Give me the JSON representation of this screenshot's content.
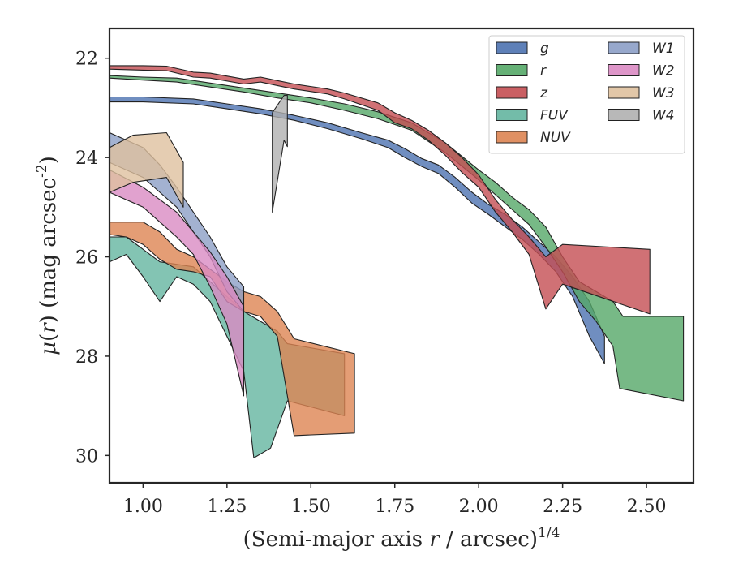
{
  "chart_data": {
    "type": "area",
    "title": "",
    "xlabel": "(Semi-major axis r / arcsec)^{1/4}",
    "ylabel": "μ(r) (mag arcsec^{-2})",
    "xlim": [
      0.9,
      2.64
    ],
    "ylim": [
      30.55,
      21.4
    ],
    "y_inverted": true,
    "grid": false,
    "legend_position": "top-right",
    "legend_columns": 2,
    "x_ticks": [
      1.0,
      1.25,
      1.5,
      1.75,
      2.0,
      2.25,
      2.5
    ],
    "x_tick_labels": [
      "1.00",
      "1.25",
      "1.50",
      "1.75",
      "2.00",
      "2.25",
      "2.50"
    ],
    "y_ticks": [
      22,
      24,
      26,
      28,
      30
    ],
    "y_tick_labels": [
      "22",
      "24",
      "26",
      "28",
      "30"
    ],
    "series": [
      {
        "name": "g",
        "color": "#4c72b0",
        "upper": [
          [
            0.9,
            22.78
          ],
          [
            1.0,
            22.78
          ],
          [
            1.15,
            22.82
          ],
          [
            1.25,
            22.92
          ],
          [
            1.35,
            23.02
          ],
          [
            1.45,
            23.15
          ],
          [
            1.55,
            23.3
          ],
          [
            1.65,
            23.5
          ],
          [
            1.73,
            23.65
          ],
          [
            1.78,
            23.82
          ],
          [
            1.83,
            24.02
          ],
          [
            1.88,
            24.15
          ],
          [
            1.93,
            24.4
          ],
          [
            1.98,
            24.7
          ],
          [
            2.03,
            24.95
          ],
          [
            2.08,
            25.15
          ],
          [
            2.13,
            25.4
          ],
          [
            2.18,
            25.7
          ],
          [
            2.23,
            26.0
          ],
          [
            2.28,
            26.4
          ],
          [
            2.33,
            26.9
          ],
          [
            2.375,
            27.6
          ]
        ],
        "lower": [
          [
            0.9,
            22.88
          ],
          [
            1.0,
            22.88
          ],
          [
            1.15,
            22.92
          ],
          [
            1.25,
            23.02
          ],
          [
            1.35,
            23.12
          ],
          [
            1.45,
            23.25
          ],
          [
            1.55,
            23.42
          ],
          [
            1.65,
            23.62
          ],
          [
            1.73,
            23.8
          ],
          [
            1.78,
            24.0
          ],
          [
            1.83,
            24.18
          ],
          [
            1.88,
            24.32
          ],
          [
            1.93,
            24.6
          ],
          [
            1.98,
            24.92
          ],
          [
            2.03,
            25.15
          ],
          [
            2.08,
            25.4
          ],
          [
            2.13,
            25.65
          ],
          [
            2.18,
            25.95
          ],
          [
            2.23,
            26.3
          ],
          [
            2.28,
            26.8
          ],
          [
            2.33,
            27.6
          ],
          [
            2.375,
            28.15
          ]
        ]
      },
      {
        "name": "r",
        "color": "#55a868",
        "upper": [
          [
            0.9,
            22.35
          ],
          [
            1.0,
            22.38
          ],
          [
            1.1,
            22.4
          ],
          [
            1.2,
            22.5
          ],
          [
            1.3,
            22.6
          ],
          [
            1.4,
            22.7
          ],
          [
            1.5,
            22.8
          ],
          [
            1.6,
            22.92
          ],
          [
            1.7,
            23.08
          ],
          [
            1.8,
            23.3
          ],
          [
            1.9,
            23.7
          ],
          [
            2.0,
            24.25
          ],
          [
            2.05,
            24.5
          ],
          [
            2.1,
            24.8
          ],
          [
            2.15,
            25.05
          ],
          [
            2.2,
            25.4
          ],
          [
            2.25,
            26.0
          ],
          [
            2.3,
            26.5
          ],
          [
            2.35,
            26.7
          ],
          [
            2.4,
            26.9
          ],
          [
            2.43,
            27.2
          ],
          [
            2.61,
            27.2
          ]
        ],
        "lower": [
          [
            0.9,
            22.4
          ],
          [
            1.0,
            22.44
          ],
          [
            1.1,
            22.48
          ],
          [
            1.2,
            22.58
          ],
          [
            1.3,
            22.68
          ],
          [
            1.4,
            22.8
          ],
          [
            1.5,
            22.9
          ],
          [
            1.6,
            23.05
          ],
          [
            1.7,
            23.22
          ],
          [
            1.8,
            23.45
          ],
          [
            1.9,
            23.9
          ],
          [
            2.0,
            24.45
          ],
          [
            2.05,
            24.75
          ],
          [
            2.1,
            25.05
          ],
          [
            2.15,
            25.35
          ],
          [
            2.2,
            25.8
          ],
          [
            2.25,
            26.3
          ],
          [
            2.3,
            26.9
          ],
          [
            2.35,
            27.3
          ],
          [
            2.4,
            27.8
          ],
          [
            2.42,
            28.65
          ],
          [
            2.61,
            28.9
          ]
        ]
      },
      {
        "name": "z",
        "color": "#c44e52",
        "upper": [
          [
            0.9,
            22.15
          ],
          [
            1.0,
            22.15
          ],
          [
            1.07,
            22.16
          ],
          [
            1.15,
            22.28
          ],
          [
            1.2,
            22.3
          ],
          [
            1.3,
            22.42
          ],
          [
            1.35,
            22.38
          ],
          [
            1.4,
            22.45
          ],
          [
            1.45,
            22.52
          ],
          [
            1.55,
            22.62
          ],
          [
            1.6,
            22.7
          ],
          [
            1.7,
            22.9
          ],
          [
            1.75,
            23.1
          ],
          [
            1.8,
            23.25
          ],
          [
            1.85,
            23.45
          ],
          [
            1.9,
            23.7
          ],
          [
            1.95,
            24.0
          ],
          [
            2.0,
            24.35
          ],
          [
            2.05,
            24.85
          ],
          [
            2.1,
            25.25
          ],
          [
            2.15,
            25.6
          ],
          [
            2.2,
            26.0
          ],
          [
            2.25,
            25.75
          ],
          [
            2.51,
            25.85
          ]
        ],
        "lower": [
          [
            0.9,
            22.22
          ],
          [
            1.0,
            22.24
          ],
          [
            1.07,
            22.25
          ],
          [
            1.15,
            22.38
          ],
          [
            1.2,
            22.4
          ],
          [
            1.3,
            22.52
          ],
          [
            1.35,
            22.48
          ],
          [
            1.4,
            22.55
          ],
          [
            1.45,
            22.62
          ],
          [
            1.55,
            22.72
          ],
          [
            1.6,
            22.82
          ],
          [
            1.7,
            23.05
          ],
          [
            1.75,
            23.3
          ],
          [
            1.8,
            23.42
          ],
          [
            1.85,
            23.65
          ],
          [
            1.9,
            23.95
          ],
          [
            1.95,
            24.3
          ],
          [
            2.0,
            24.6
          ],
          [
            2.05,
            25.1
          ],
          [
            2.1,
            25.5
          ],
          [
            2.15,
            25.95
          ],
          [
            2.2,
            27.05
          ],
          [
            2.25,
            26.55
          ],
          [
            2.51,
            27.15
          ]
        ]
      },
      {
        "name": "FUV",
        "color": "#64b5a0",
        "upper": [
          [
            0.9,
            25.6
          ],
          [
            0.95,
            25.6
          ],
          [
            1.0,
            25.85
          ],
          [
            1.05,
            26.1
          ],
          [
            1.1,
            26.15
          ],
          [
            1.15,
            26.2
          ],
          [
            1.2,
            26.5
          ],
          [
            1.25,
            26.8
          ],
          [
            1.3,
            27.1
          ],
          [
            1.35,
            27.3
          ],
          [
            1.4,
            27.5
          ],
          [
            1.43,
            27.75
          ],
          [
            1.6,
            27.95
          ]
        ],
        "lower": [
          [
            0.9,
            26.1
          ],
          [
            0.95,
            25.95
          ],
          [
            1.0,
            26.4
          ],
          [
            1.05,
            26.9
          ],
          [
            1.1,
            26.4
          ],
          [
            1.15,
            26.55
          ],
          [
            1.2,
            26.9
          ],
          [
            1.25,
            27.6
          ],
          [
            1.3,
            28.3
          ],
          [
            1.33,
            30.05
          ],
          [
            1.38,
            29.85
          ],
          [
            1.43,
            28.9
          ],
          [
            1.6,
            29.2
          ]
        ]
      },
      {
        "name": "NUV",
        "color": "#dd8452",
        "upper": [
          [
            0.9,
            25.3
          ],
          [
            0.95,
            25.3
          ],
          [
            1.0,
            25.3
          ],
          [
            1.05,
            25.5
          ],
          [
            1.1,
            25.85
          ],
          [
            1.15,
            26.0
          ],
          [
            1.2,
            26.25
          ],
          [
            1.25,
            26.5
          ],
          [
            1.3,
            26.7
          ],
          [
            1.35,
            26.8
          ],
          [
            1.4,
            27.1
          ],
          [
            1.45,
            27.65
          ],
          [
            1.63,
            27.95
          ]
        ],
        "lower": [
          [
            0.9,
            25.55
          ],
          [
            0.95,
            25.6
          ],
          [
            1.0,
            25.75
          ],
          [
            1.05,
            26.05
          ],
          [
            1.1,
            26.25
          ],
          [
            1.15,
            26.3
          ],
          [
            1.2,
            26.4
          ],
          [
            1.25,
            26.9
          ],
          [
            1.3,
            27.1
          ],
          [
            1.35,
            27.2
          ],
          [
            1.4,
            27.6
          ],
          [
            1.45,
            29.6
          ],
          [
            1.63,
            29.55
          ]
        ]
      },
      {
        "name": "W1",
        "color": "#8c9fc6",
        "upper": [
          [
            0.9,
            23.5
          ],
          [
            1.0,
            23.8
          ],
          [
            1.05,
            24.15
          ],
          [
            1.1,
            24.6
          ],
          [
            1.15,
            25.1
          ],
          [
            1.2,
            25.6
          ],
          [
            1.25,
            26.2
          ],
          [
            1.3,
            26.6
          ]
        ],
        "lower": [
          [
            0.9,
            24.1
          ],
          [
            1.0,
            24.4
          ],
          [
            1.05,
            24.7
          ],
          [
            1.1,
            25.0
          ],
          [
            1.15,
            25.5
          ],
          [
            1.2,
            26.0
          ],
          [
            1.25,
            26.7
          ],
          [
            1.3,
            27.1
          ]
        ]
      },
      {
        "name": "W2",
        "color": "#da8bc3",
        "upper": [
          [
            0.9,
            24.25
          ],
          [
            1.0,
            24.6
          ],
          [
            1.05,
            24.85
          ],
          [
            1.1,
            25.1
          ],
          [
            1.15,
            25.5
          ],
          [
            1.2,
            25.9
          ],
          [
            1.25,
            26.4
          ],
          [
            1.3,
            27.0
          ]
        ],
        "lower": [
          [
            0.9,
            24.7
          ],
          [
            1.0,
            25.0
          ],
          [
            1.05,
            25.3
          ],
          [
            1.1,
            25.6
          ],
          [
            1.15,
            25.95
          ],
          [
            1.2,
            26.6
          ],
          [
            1.25,
            27.35
          ],
          [
            1.3,
            28.8
          ]
        ]
      },
      {
        "name": "W3",
        "color": "#dfc19f",
        "upper": [
          [
            0.9,
            23.8
          ],
          [
            0.97,
            23.55
          ],
          [
            1.07,
            23.5
          ],
          [
            1.12,
            24.1
          ]
        ],
        "lower": [
          [
            0.9,
            24.7
          ],
          [
            0.97,
            24.5
          ],
          [
            1.07,
            24.4
          ],
          [
            1.12,
            25.0
          ]
        ]
      },
      {
        "name": "W4",
        "color": "#b0b0b0",
        "upper": [
          [
            1.385,
            23.1
          ],
          [
            1.42,
            22.75
          ],
          [
            1.43,
            22.75
          ]
        ],
        "lower": [
          [
            1.385,
            25.1
          ],
          [
            1.42,
            23.65
          ],
          [
            1.43,
            23.78
          ]
        ]
      }
    ]
  }
}
